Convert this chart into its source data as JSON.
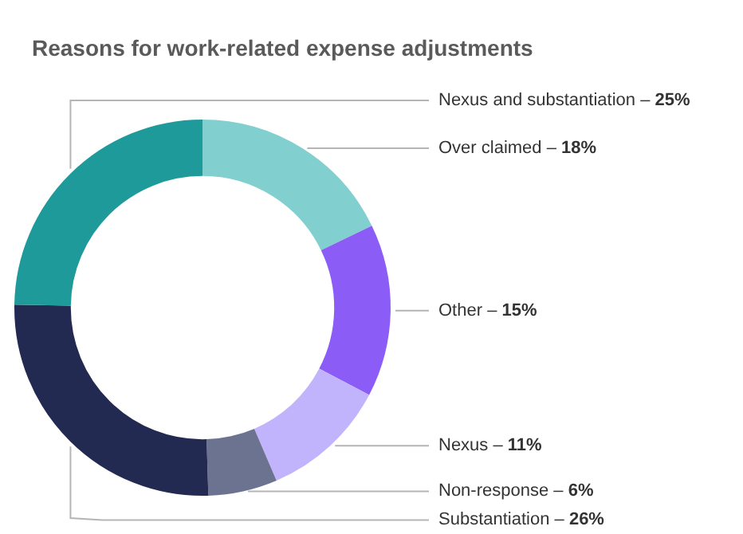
{
  "chart_data": {
    "type": "donut",
    "title": "Reasons for work-related expense adjustments",
    "categories": [
      "Over claimed – 18%",
      "Other – 15%",
      "Nexus – 11%",
      "Non-response – 6%",
      "Substantiation – 26%",
      "Nexus and substantiation – 25%"
    ],
    "values": [
      18,
      15,
      11,
      6,
      26,
      25
    ],
    "colors": [
      "#82cfcf",
      "#8b5cf6",
      "#c2b4fc",
      "#6b7390",
      "#232a52",
      "#1f9a9b"
    ],
    "legend": false
  }
}
